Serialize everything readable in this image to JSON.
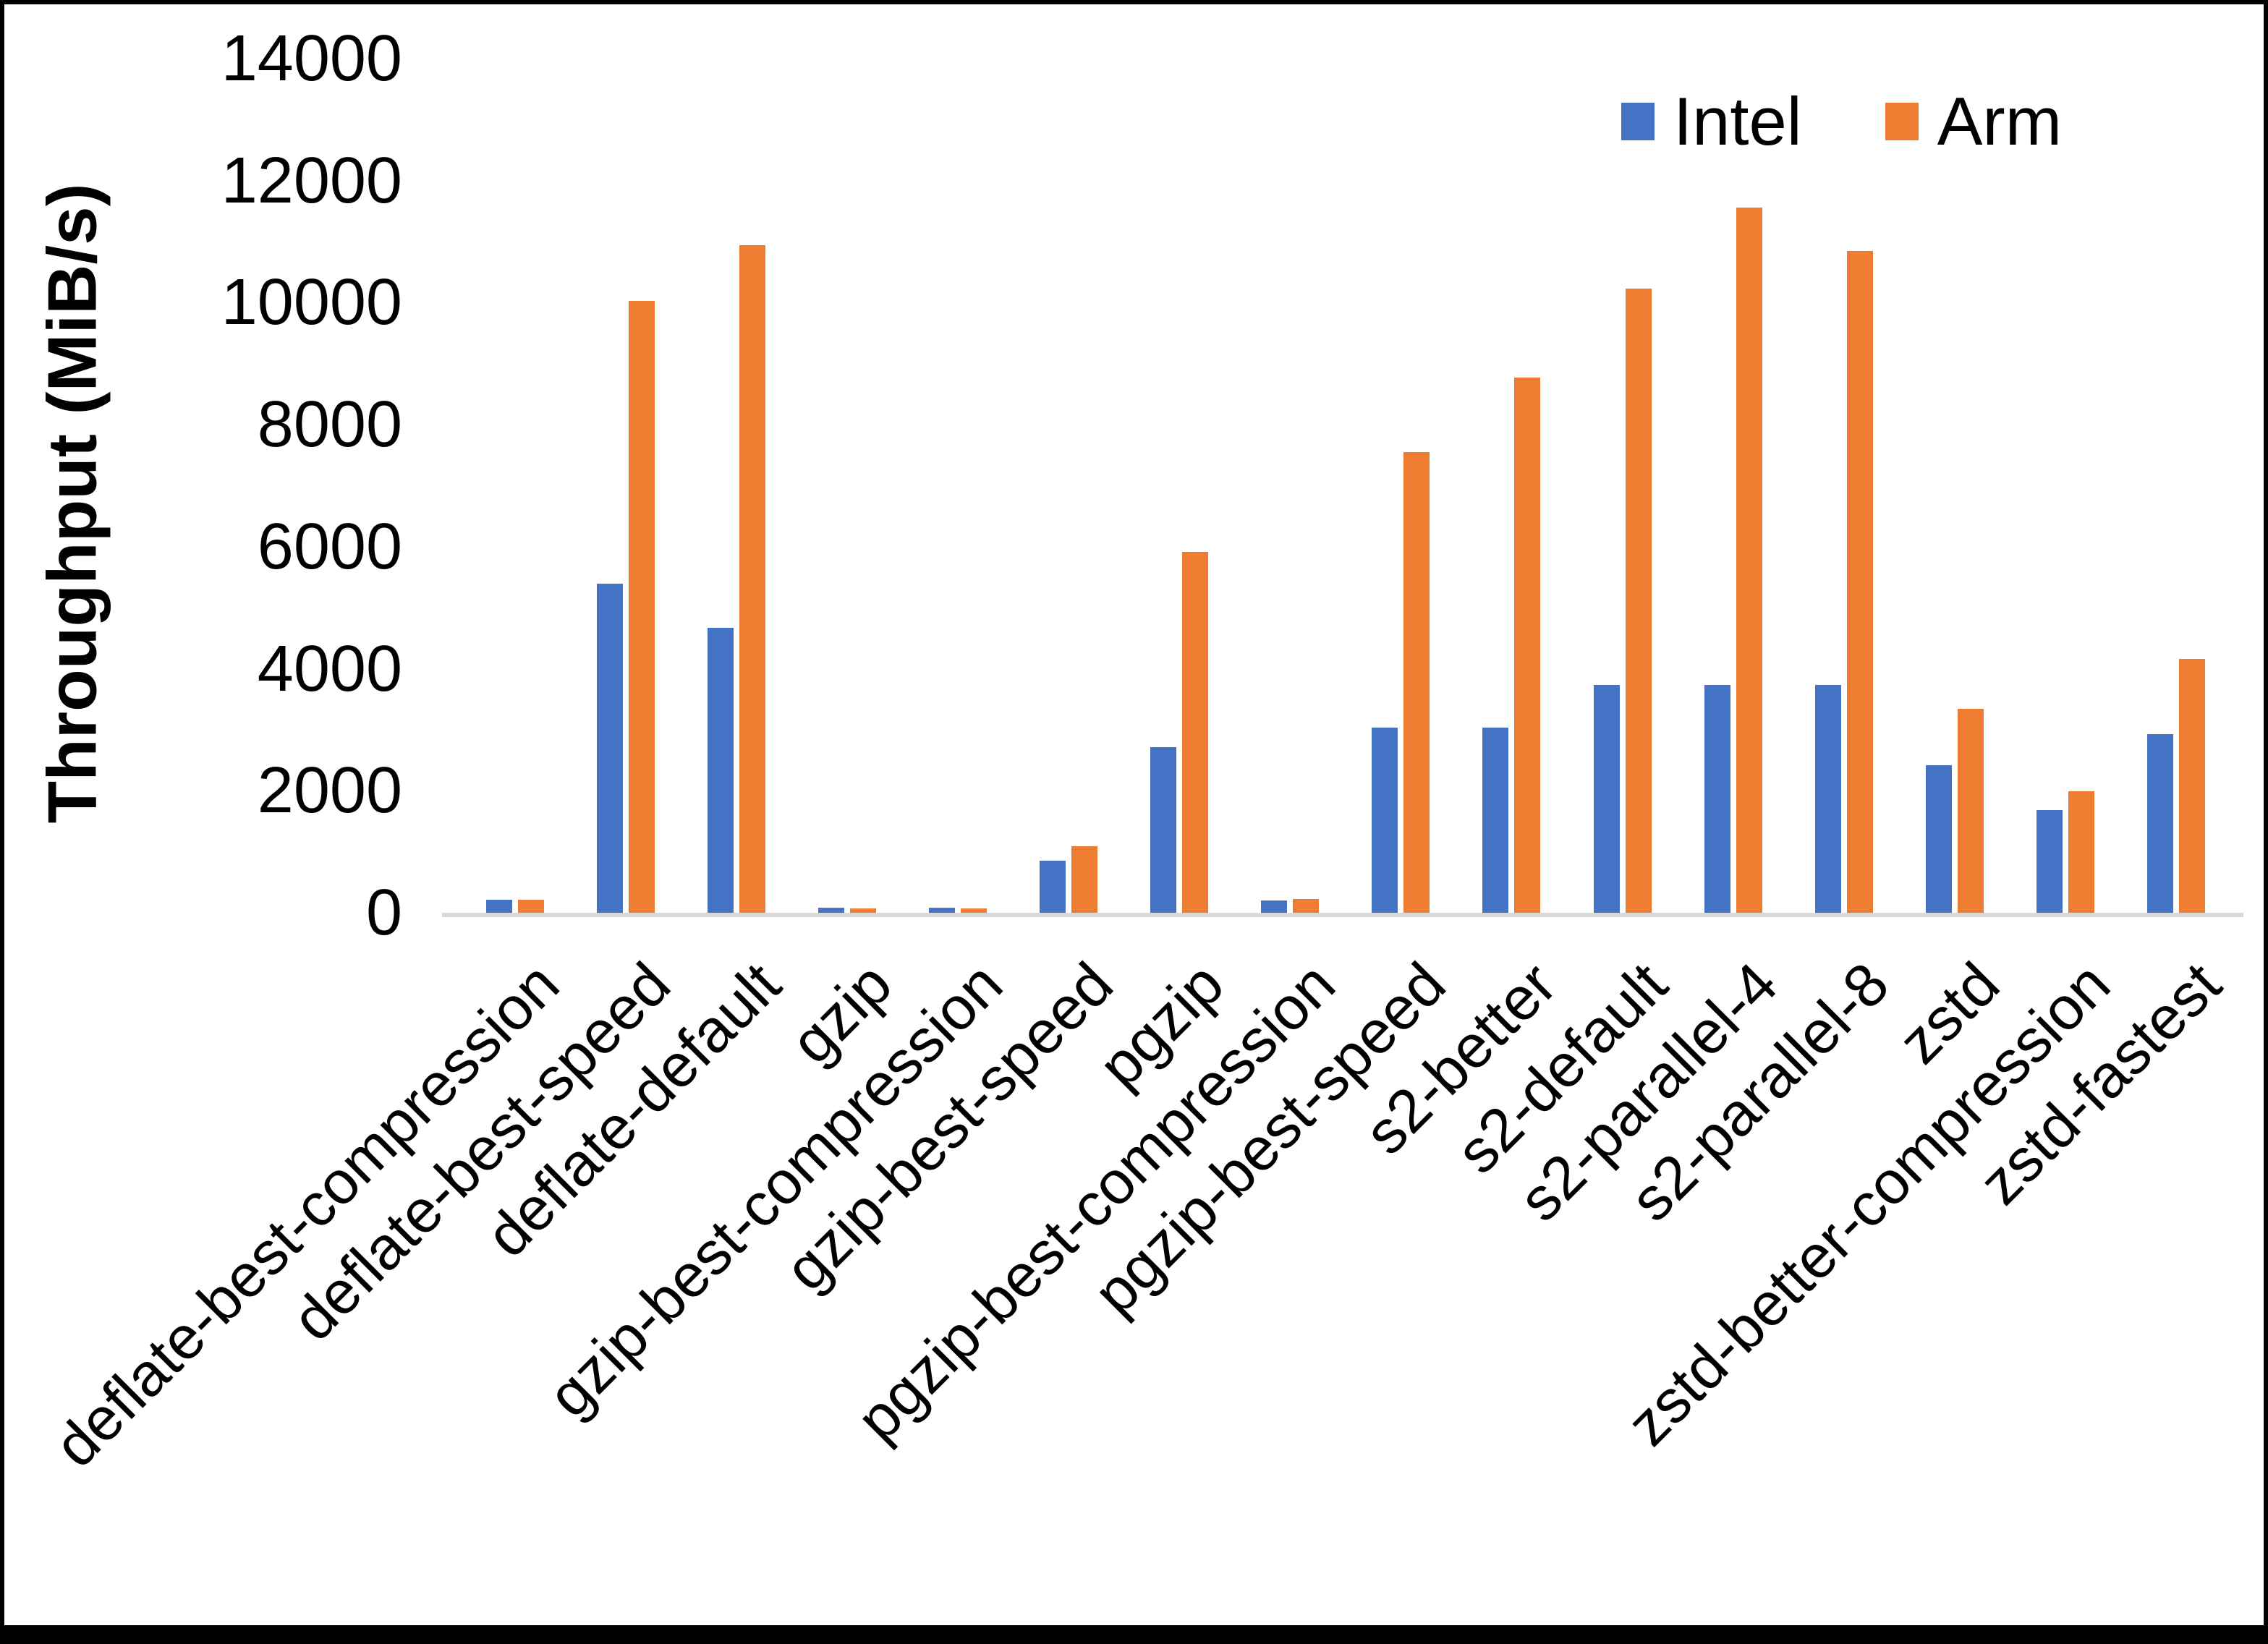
{
  "chart_data": {
    "type": "bar",
    "title": "",
    "ylabel": "Throughput (MiB/s)",
    "xlabel": "",
    "ylim": [
      0,
      14000
    ],
    "yticks": [
      0,
      2000,
      4000,
      6000,
      8000,
      10000,
      12000,
      14000
    ],
    "grid": false,
    "legend_position": "top-right",
    "axis_line_color": "#D9D9D9",
    "text_color": "#000000",
    "categories": [
      "deflate-best-compression",
      "deflate-best-speed",
      "deflate-default",
      "gzip",
      "gzip-best-compression",
      "gzip-best-speed",
      "pgzip",
      "pgzip-best-compression",
      "pgzip-best-speed",
      "s2-better",
      "s2-default",
      "s2-parallel-4",
      "s2-parallel-8",
      "zstd",
      "zstd-better-compression",
      "zstd-fastest"
    ],
    "series": [
      {
        "name": "Intel",
        "color": "#4472C4",
        "values": [
          240,
          5420,
          4700,
          110,
          110,
          880,
          2740,
          230,
          3060,
          3060,
          3760,
          3760,
          3760,
          2440,
          1710,
          2950
        ]
      },
      {
        "name": "Arm",
        "color": "#ED7D31",
        "values": [
          240,
          10050,
          10970,
          90,
          95,
          1120,
          5940,
          250,
          7580,
          8800,
          10250,
          11580,
          10870,
          3370,
          2020,
          4190
        ]
      }
    ]
  }
}
